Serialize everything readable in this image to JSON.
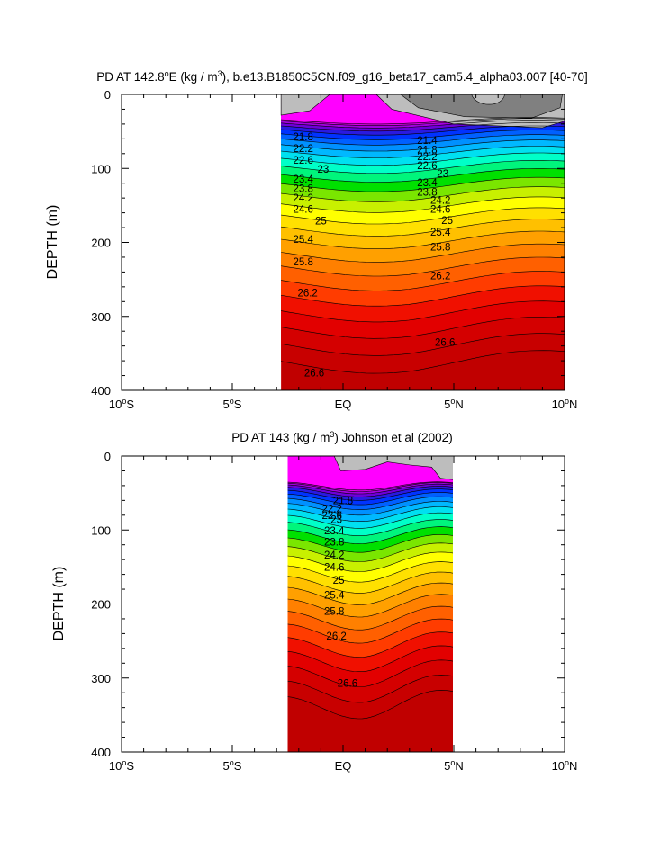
{
  "chart_data": [
    {
      "type": "heatmap",
      "title": {
        "pre": "PD AT 142.8",
        "deg": "o",
        "mid": "E (kg / m",
        "sup": "3",
        "post": "), b.e13.B1850C5CN.f09_g16_beta17_cam5.4_alpha03.007 [40-70]"
      },
      "ylabel": "DEPTH (m)",
      "xlim": [
        -10,
        10
      ],
      "ylim": [
        400,
        0
      ],
      "data_xrange": [
        -2.8,
        10
      ],
      "data_yrange": [
        0,
        400
      ],
      "x_ticks": [
        {
          "value": -10,
          "num": "10",
          "deg": "o",
          "hem": "S"
        },
        {
          "value": -5,
          "num": "5",
          "deg": "o",
          "hem": "S"
        },
        {
          "value": 0,
          "num": "EQ",
          "deg": "",
          "hem": ""
        },
        {
          "value": 5,
          "num": "5",
          "deg": "o",
          "hem": "N"
        },
        {
          "value": 10,
          "num": "10",
          "deg": "o",
          "hem": "N"
        }
      ],
      "y_ticks": [
        0,
        100,
        200,
        300,
        400
      ],
      "contour_labels": [
        {
          "text": "21.8",
          "x": -1.8,
          "y": 57
        },
        {
          "text": "22.2",
          "x": -1.8,
          "y": 73
        },
        {
          "text": "22.6",
          "x": -1.8,
          "y": 89
        },
        {
          "text": "23",
          "x": -0.9,
          "y": 101
        },
        {
          "text": "23.4",
          "x": -1.8,
          "y": 114
        },
        {
          "text": "23.8",
          "x": -1.8,
          "y": 127
        },
        {
          "text": "24.2",
          "x": -1.8,
          "y": 140
        },
        {
          "text": "24.6",
          "x": -1.8,
          "y": 155
        },
        {
          "text": "25",
          "x": -1.0,
          "y": 171
        },
        {
          "text": "25.4",
          "x": -1.8,
          "y": 196
        },
        {
          "text": "25.8",
          "x": -1.8,
          "y": 226
        },
        {
          "text": "26.2",
          "x": -1.6,
          "y": 268
        },
        {
          "text": "26.6",
          "x": -1.3,
          "y": 376
        },
        {
          "text": "21.4",
          "x": 3.8,
          "y": 62
        },
        {
          "text": "21.8",
          "x": 3.8,
          "y": 75
        },
        {
          "text": "22.2",
          "x": 3.8,
          "y": 84
        },
        {
          "text": "22.6",
          "x": 3.8,
          "y": 96
        },
        {
          "text": "23",
          "x": 4.5,
          "y": 107
        },
        {
          "text": "23.4",
          "x": 3.8,
          "y": 119
        },
        {
          "text": "23.8",
          "x": 3.8,
          "y": 132
        },
        {
          "text": "24.2",
          "x": 4.4,
          "y": 143
        },
        {
          "text": "24.6",
          "x": 4.4,
          "y": 155
        },
        {
          "text": "25",
          "x": 4.7,
          "y": 170
        },
        {
          "text": "25.4",
          "x": 4.4,
          "y": 186
        },
        {
          "text": "25.8",
          "x": 4.4,
          "y": 206
        },
        {
          "text": "26.2",
          "x": 4.4,
          "y": 245
        },
        {
          "text": "26.6",
          "x": 4.6,
          "y": 335
        }
      ]
    },
    {
      "type": "heatmap",
      "title": {
        "pre": "PD AT 143 (kg / m",
        "sup": "3",
        "post": ") Johnson et al (2002)"
      },
      "ylabel": "DEPTH (m)",
      "xlim": [
        -10,
        10
      ],
      "ylim": [
        400,
        0
      ],
      "data_xrange": [
        -2.5,
        5
      ],
      "data_yrange": [
        0,
        400
      ],
      "x_ticks": [
        {
          "value": -10,
          "num": "10",
          "deg": "o",
          "hem": "S"
        },
        {
          "value": -5,
          "num": "5",
          "deg": "o",
          "hem": "S"
        },
        {
          "value": 0,
          "num": "EQ",
          "deg": "",
          "hem": ""
        },
        {
          "value": 5,
          "num": "5",
          "deg": "o",
          "hem": "N"
        },
        {
          "value": 10,
          "num": "10",
          "deg": "o",
          "hem": "N"
        }
      ],
      "y_ticks": [
        0,
        100,
        200,
        300,
        400
      ],
      "contour_labels": [
        {
          "text": "21.8",
          "x": 0,
          "y": 60
        },
        {
          "text": "22.2",
          "x": -0.5,
          "y": 71
        },
        {
          "text": "22.6",
          "x": -0.5,
          "y": 80
        },
        {
          "text": "23",
          "x": -0.3,
          "y": 86
        },
        {
          "text": "23.4",
          "x": -0.4,
          "y": 101
        },
        {
          "text": "23.8",
          "x": -0.4,
          "y": 116
        },
        {
          "text": "24.2",
          "x": -0.4,
          "y": 134
        },
        {
          "text": "24.6",
          "x": -0.4,
          "y": 150
        },
        {
          "text": "25",
          "x": -0.2,
          "y": 168
        },
        {
          "text": "25.4",
          "x": -0.4,
          "y": 188
        },
        {
          "text": "25.8",
          "x": -0.4,
          "y": 210
        },
        {
          "text": "26.2",
          "x": -0.3,
          "y": 243
        },
        {
          "text": "26.6",
          "x": 0.2,
          "y": 307
        }
      ]
    }
  ]
}
